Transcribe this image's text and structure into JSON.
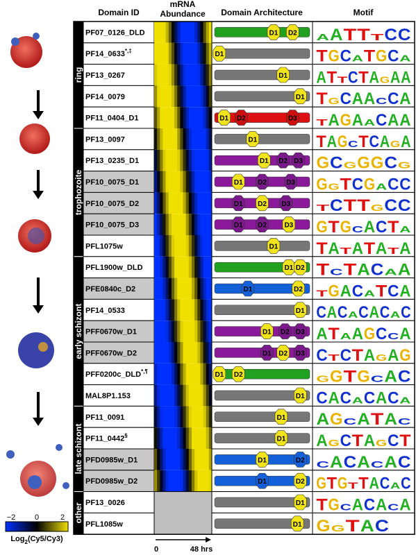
{
  "header": {
    "domain_id": "Domain ID",
    "mrna": [
      "mRNA",
      "Abundance"
    ],
    "architecture": "Domain Architecture",
    "motif": "Motif"
  },
  "stages": [
    {
      "label": "ring",
      "rows": [
        {
          "id": "PF07_0126_DLD",
          "bar": "#22a020",
          "domains": [
            {
              "label": "D1",
              "color": "#f2e41a"
            },
            {
              "label": "D2",
              "color": "#f2e41a"
            }
          ],
          "motif": "AATTTCC"
        },
        {
          "id": "PF14_0633",
          "note": "*,‡",
          "bar": "#777777",
          "domains": [
            {
              "label": "D1",
              "color": "#f2e41a"
            }
          ],
          "motif": "TGCATGCA"
        },
        {
          "id": "PF13_0267",
          "bar": "#777777",
          "domains": [
            {
              "label": "D1",
              "color": "#f2e41a"
            }
          ],
          "motif": "ATTCTAGAA"
        },
        {
          "id": "PF14_0079",
          "bar": "#777777",
          "domains": [
            {
              "label": "D1",
              "color": "#f2e41a"
            }
          ],
          "motif": "TGCAACCA"
        },
        {
          "id": "PF11_0404_D1",
          "bar": "#dd1111",
          "domains": [
            {
              "label": "D1",
              "color": "#f2e41a"
            },
            {
              "label": "D2",
              "color": "#cc1010"
            },
            {
              "label": "D3",
              "color": "#cc1010"
            }
          ],
          "motif": "TAGAACAA"
        }
      ]
    },
    {
      "label": "trophozoite",
      "rows": [
        {
          "id": "PF13_0097",
          "bar": "#777777",
          "domains": [
            {
              "label": "D1",
              "color": "#f2e41a"
            }
          ],
          "motif": "TAGCTCAGA"
        },
        {
          "id": "PF13_0235_D1",
          "bar": "#8a1a9a",
          "domains": [
            {
              "label": "D1",
              "color": "#f2e41a"
            },
            {
              "label": "D2",
              "color": "#7a1a8a"
            },
            {
              "label": "D3",
              "color": "#7a1a8a"
            }
          ],
          "motif": "GCGGGCG"
        },
        {
          "id": "PF10_0075_D1",
          "shaded": true,
          "bar": "#8a1a9a",
          "domains": [
            {
              "label": "D1",
              "color": "#f2e41a"
            },
            {
              "label": "D2",
              "color": "#7a1a8a"
            },
            {
              "label": "D3",
              "color": "#7a1a8a"
            }
          ],
          "motif": "GGTCGACC"
        },
        {
          "id": "PF10_0075_D2",
          "shaded": true,
          "bar": "#8a1a9a",
          "domains": [
            {
              "label": "D1",
              "color": "#7a1a8a"
            },
            {
              "label": "D2",
              "color": "#f2e41a"
            },
            {
              "label": "D3",
              "color": "#7a1a8a"
            }
          ],
          "motif": "TCTTGCC"
        },
        {
          "id": "PF10_0075_D3",
          "shaded": true,
          "bar": "#8a1a9a",
          "domains": [
            {
              "label": "D1",
              "color": "#7a1a8a"
            },
            {
              "label": "D2",
              "color": "#7a1a8a"
            },
            {
              "label": "D3",
              "color": "#f2e41a"
            }
          ],
          "motif": "GTGCACTA"
        },
        {
          "id": "PFL1075w",
          "bar": "#777777",
          "domains": [
            {
              "label": "D1",
              "color": "#f2e41a"
            }
          ],
          "motif": "TATATATA"
        }
      ]
    },
    {
      "label": "early schizont",
      "rows": [
        {
          "id": "PFL1900w_DLD",
          "bar": "#22a020",
          "domains": [
            {
              "label": "D1",
              "color": "#f2e41a"
            },
            {
              "label": "D2",
              "color": "#f2e41a"
            }
          ],
          "motif": "TCTACAA"
        },
        {
          "id": "PFE0840c_D2",
          "shaded": true,
          "bar": "#1460d8",
          "domains": [
            {
              "label": "D1",
              "color": "#1460d8"
            },
            {
              "label": "D2",
              "color": "#f2e41a"
            }
          ],
          "motif": "TGACATCA"
        },
        {
          "id": "PF14_0533",
          "bar": "#777777",
          "domains": [
            {
              "label": "D1",
              "color": "#f2e41a"
            }
          ],
          "motif": "CACACACAC"
        },
        {
          "id": "PFF0670w_D1",
          "shaded": true,
          "bar": "#8a1a9a",
          "domains": [
            {
              "label": "D1",
              "color": "#f2e41a"
            },
            {
              "label": "D2",
              "color": "#7a1a8a"
            },
            {
              "label": "D3",
              "color": "#7a1a8a"
            }
          ],
          "motif": "ATAAGCCA"
        },
        {
          "id": "PFF0670w_D2",
          "shaded": true,
          "bar": "#8a1a9a",
          "domains": [
            {
              "label": "D1",
              "color": "#7a1a8a"
            },
            {
              "label": "D2",
              "color": "#f2e41a"
            },
            {
              "label": "D3",
              "color": "#7a1a8a"
            }
          ],
          "motif": "CTCTAGAG"
        },
        {
          "id": "PFF0200c_DLD",
          "note": "*,¶",
          "bar": "#22a020",
          "domains": [
            {
              "label": "D1",
              "color": "#f2e41a"
            },
            {
              "label": "D2",
              "color": "#f2e41a"
            }
          ],
          "motif": "GGTGCAC"
        },
        {
          "id": "MAL8P1.153",
          "bar": "#777777",
          "domains": [
            {
              "label": "D1",
              "color": "#f2e41a"
            }
          ],
          "motif": "CACACACA"
        }
      ]
    },
    {
      "label": "late schizont",
      "rows": [
        {
          "id": "PF11_0091",
          "bar": "#777777",
          "domains": [
            {
              "label": "D1",
              "color": "#f2e41a"
            }
          ],
          "motif": "AGCATAC"
        },
        {
          "id": "PF11_0442",
          "note": "§",
          "bar": "#777777",
          "domains": [
            {
              "label": "D1",
              "color": "#f2e41a"
            }
          ],
          "motif": "AGCTAGCT"
        },
        {
          "id": "PFD0985w_D1",
          "shaded": true,
          "bar": "#1460d8",
          "domains": [
            {
              "label": "D1",
              "color": "#f2e41a"
            },
            {
              "label": "D2",
              "color": "#1460d8"
            }
          ],
          "motif": "CACACAC"
        },
        {
          "id": "PFD0985w_D2",
          "shaded": true,
          "bar": "#1460d8",
          "domains": [
            {
              "label": "D1",
              "color": "#1460d8"
            },
            {
              "label": "D2",
              "color": "#f2e41a"
            }
          ],
          "motif": "GTGTTACAC"
        }
      ]
    },
    {
      "label": "other",
      "rows": [
        {
          "id": "PF13_0026",
          "bar": "#777777",
          "domains": [
            {
              "label": "D1",
              "color": "#f2e41a"
            }
          ],
          "motif": "TGCACACA"
        },
        {
          "id": "PFL1085w",
          "bar": "#777777",
          "domains": [
            {
              "label": "D1",
              "color": "#f2e41a"
            }
          ],
          "motif": "GGTAC"
        }
      ]
    }
  ],
  "time_axis": {
    "start": "0",
    "end": "48 hrs"
  },
  "legend": {
    "ticks": [
      "−2",
      "0",
      "2"
    ],
    "label": [
      "Log",
      "2",
      "(Cy5/Cy3)"
    ]
  }
}
